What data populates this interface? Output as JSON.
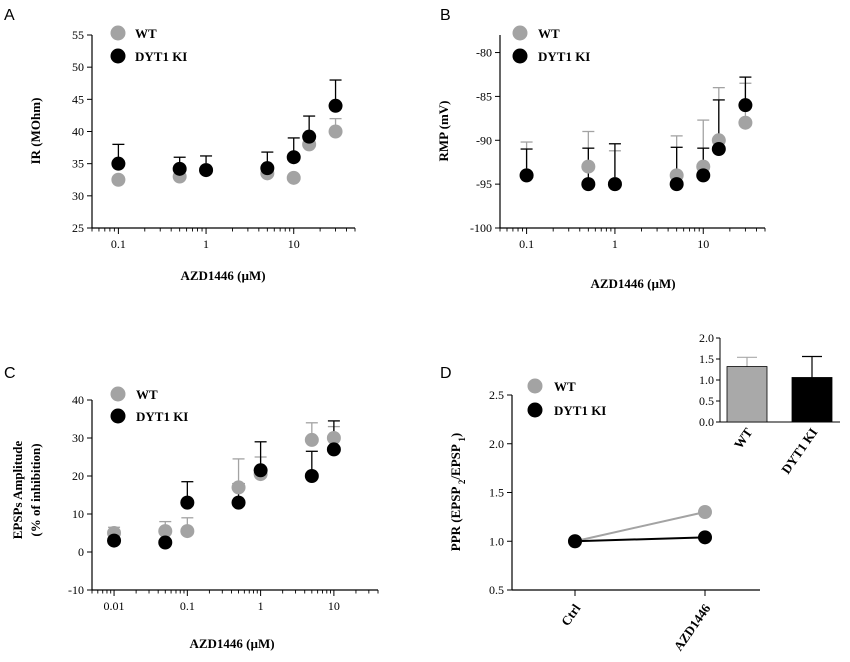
{
  "colors": {
    "wt": "#a3a3a3",
    "ki": "#000000",
    "wt_bar": "#a9a9a9"
  },
  "chart_data": [
    {
      "id": "A",
      "panel_label": "A",
      "type": "scatter",
      "xscale": "log",
      "xlabel": "AZD1446 (µM)",
      "ylabel": "IR (MOhm)",
      "xlim": [
        0.05,
        50
      ],
      "ylim": [
        25,
        55
      ],
      "xticks": [
        0.1,
        1,
        10
      ],
      "xtick_labels": [
        "0.1",
        "1",
        "10"
      ],
      "yticks": [
        25,
        30,
        35,
        40,
        45,
        50,
        55
      ],
      "legend": [
        "WT",
        "DYT1 KI"
      ],
      "series": [
        {
          "name": "WT",
          "x": [
            0.1,
            0.5,
            1,
            5,
            10,
            15,
            30
          ],
          "y": [
            32.5,
            33,
            34,
            33.5,
            32.8,
            38,
            40
          ],
          "err": [
            0,
            0,
            0,
            0,
            0,
            1.2,
            2
          ]
        },
        {
          "name": "DYT1 KI",
          "x": [
            0.1,
            0.5,
            1,
            5,
            10,
            15,
            30
          ],
          "y": [
            35,
            34.2,
            34,
            34.3,
            36,
            39.2,
            44
          ],
          "err": [
            3,
            1.8,
            2.2,
            2.5,
            3,
            3.2,
            4
          ]
        }
      ]
    },
    {
      "id": "B",
      "panel_label": "B",
      "type": "scatter",
      "xscale": "log",
      "xlabel": "AZD1446 (µM)",
      "ylabel": "RMP (mV)",
      "xlim": [
        0.05,
        50
      ],
      "ylim": [
        -100,
        -78
      ],
      "xticks": [
        0.1,
        1,
        10
      ],
      "xtick_labels": [
        "0.1",
        "1",
        "10"
      ],
      "yticks": [
        -80,
        -85,
        -90,
        -95,
        -100
      ],
      "legend": [
        "WT",
        "DYT1 KI"
      ],
      "series": [
        {
          "name": "WT",
          "x": [
            0.1,
            0.5,
            1,
            5,
            10,
            15,
            30
          ],
          "y": [
            -94,
            -93,
            -95,
            -94,
            -93,
            -90,
            -88
          ],
          "err": [
            3.8,
            4,
            3.8,
            4.5,
            5.3,
            6,
            4.5
          ]
        },
        {
          "name": "DYT1 KI",
          "x": [
            0.1,
            0.5,
            1,
            5,
            10,
            15,
            30
          ],
          "y": [
            -94,
            -95,
            -95,
            -95,
            -94,
            -91,
            -86
          ],
          "err": [
            3,
            4.1,
            4.6,
            4.2,
            3.1,
            5.6,
            3.2
          ]
        }
      ]
    },
    {
      "id": "C",
      "panel_label": "C",
      "type": "scatter",
      "xscale": "log",
      "xlabel": "AZD1446 (µM)",
      "ylabel_lines": [
        "EPSPs Amplitude",
        "(% of inhibition)"
      ],
      "xlim": [
        0.005,
        40
      ],
      "ylim": [
        -10,
        40
      ],
      "xticks": [
        0.01,
        0.1,
        1,
        10
      ],
      "xtick_labels": [
        "0.01",
        "0.1",
        "1",
        "10"
      ],
      "yticks": [
        -10,
        0,
        10,
        20,
        30,
        40
      ],
      "legend": [
        "WT",
        "DYT1 KI"
      ],
      "series": [
        {
          "name": "WT",
          "x": [
            0.01,
            0.05,
            0.1,
            0.5,
            1,
            5,
            10
          ],
          "y": [
            5,
            5.5,
            5.5,
            17,
            20.5,
            29.5,
            30
          ],
          "err": [
            1.5,
            2.5,
            3.5,
            7.5,
            4.5,
            4.5,
            3
          ]
        },
        {
          "name": "DYT1 KI",
          "x": [
            0.01,
            0.05,
            0.1,
            0.5,
            1,
            5,
            10
          ],
          "y": [
            3,
            2.5,
            13,
            13,
            21.5,
            20,
            27
          ],
          "err": [
            2.5,
            3.5,
            5.5,
            5,
            7.5,
            6.5,
            7.5
          ]
        }
      ]
    },
    {
      "id": "D",
      "panel_label": "D",
      "type": "line",
      "ylabel": "PPR (EPSP2/EPSP1)",
      "categories": [
        "Ctrl",
        "AZD1446"
      ],
      "ylim": [
        0.5,
        2.5
      ],
      "yticks": [
        0.5,
        1.0,
        1.5,
        2.0,
        2.5
      ],
      "ytick_labels": [
        "0.5",
        "1.0",
        "1.5",
        "2.0",
        "2.5"
      ],
      "legend": [
        "WT",
        "DYT1 KI"
      ],
      "series": [
        {
          "name": "WT",
          "values": [
            1.0,
            1.3
          ]
        },
        {
          "name": "DYT1 KI",
          "values": [
            1.0,
            1.04
          ]
        }
      ]
    },
    {
      "id": "D-inset",
      "type": "bar",
      "categories": [
        "WT",
        "DYT1 KI"
      ],
      "values": [
        1.32,
        1.06
      ],
      "err": [
        0.22,
        0.5
      ],
      "ylim": [
        0,
        2.0
      ],
      "yticks": [
        0,
        0.5,
        1.0,
        1.5,
        2.0
      ],
      "ytick_labels": [
        "0.0",
        "0.5",
        "1.0",
        "1.5",
        "2.0"
      ]
    }
  ]
}
